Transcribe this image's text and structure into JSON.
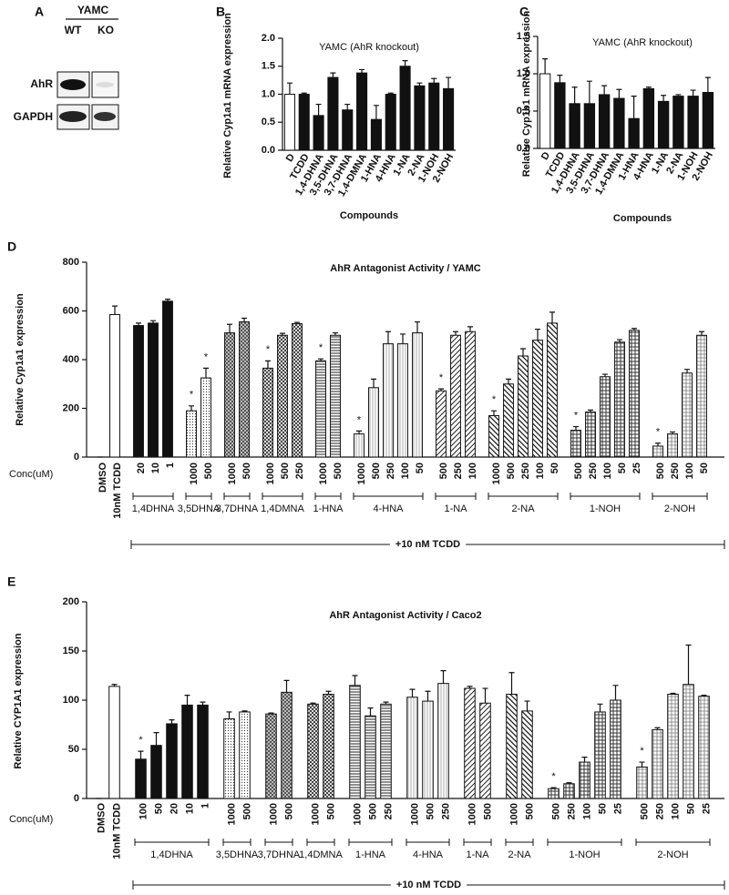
{
  "blot": {
    "panel_label": "A",
    "title": "YAMC",
    "columns": [
      "WT",
      "KO"
    ],
    "rows": [
      "AhR",
      "GAPDH"
    ]
  },
  "chart_data": [
    {
      "type": "bar",
      "panel_label": "B",
      "title": "YAMC (AhR knockout)",
      "y_label": "Relative Cyp1a1 mRNA expression",
      "x_label": "Compounds",
      "categories": [
        "D",
        "TCDD",
        "1,4-DHNA",
        "3,5-DHNA",
        "3,7-DHNA",
        "1,4-DMNA",
        "1-HNA",
        "4-HNA",
        "1-NA",
        "2-NA",
        "1-NOH",
        "2-NOH"
      ],
      "values": [
        1.0,
        1.0,
        0.62,
        1.3,
        0.72,
        1.38,
        0.55,
        1.0,
        1.5,
        1.15,
        1.2,
        1.1
      ],
      "errors": [
        0.2,
        0.02,
        0.2,
        0.08,
        0.1,
        0.06,
        0.25,
        0.02,
        0.1,
        0.05,
        0.08,
        0.2
      ],
      "colors": [
        "#ffffff",
        "#111111",
        "#111111",
        "#111111",
        "#111111",
        "#111111",
        "#111111",
        "#111111",
        "#111111",
        "#111111",
        "#111111",
        "#111111"
      ],
      "ylim": [
        0,
        2
      ],
      "yticks": [
        {
          "value": 0,
          "label": "0.0"
        },
        0.5,
        {
          "value": 1,
          "label": "1.0"
        },
        1.5,
        {
          "value": 2,
          "label": "2.0"
        }
      ]
    },
    {
      "type": "bar",
      "panel_label": "C",
      "title": "YAMC (AhR knockout)",
      "y_label": "Relative Cyp1b1 mRNA expression",
      "x_label": "Compounds",
      "categories": [
        "D",
        "TCDD",
        "1,4-DHNA",
        "3,5-DHNA",
        "3,7-DHNA",
        "1,4-DMNA",
        "1-HNA",
        "4-HNA",
        "1-NA",
        "2-NA",
        "1-NOH",
        "2-NOH"
      ],
      "values": [
        1.0,
        0.88,
        0.6,
        0.6,
        0.72,
        0.67,
        0.4,
        0.8,
        0.63,
        0.7,
        0.7,
        0.75
      ],
      "errors": [
        0.2,
        0.1,
        0.22,
        0.3,
        0.12,
        0.12,
        0.3,
        0.02,
        0.08,
        0.02,
        0.08,
        0.2
      ],
      "colors": [
        "#ffffff",
        "#111111",
        "#111111",
        "#111111",
        "#111111",
        "#111111",
        "#111111",
        "#111111",
        "#111111",
        "#111111",
        "#111111",
        "#111111"
      ],
      "ylim": [
        0,
        1.5
      ],
      "yticks": [
        {
          "value": 0,
          "label": "0.0"
        },
        0.5,
        {
          "value": 1,
          "label": "1.0"
        },
        1.5
      ]
    },
    {
      "type": "bar",
      "panel_label": "D",
      "title": "AhR Antagonist Activity / YAMC",
      "y_label": "Relative Cyp1a1 expression",
      "conc_label": "Conc(uM)",
      "treatment_label": "+10 nM TCDD",
      "categories": [
        "DMSO",
        "10nM TCDD",
        "20",
        "10",
        "1",
        "1000",
        "500",
        "1000",
        "500",
        "1000",
        "500",
        "250",
        "1000",
        "500",
        "1000",
        "500",
        "250",
        "100",
        "50",
        "500",
        "250",
        "100",
        "1000",
        "500",
        "250",
        "100",
        "50",
        "500",
        "250",
        "100",
        "50",
        "25",
        "500",
        "250",
        "100",
        "50"
      ],
      "values": [
        0,
        585,
        540,
        550,
        640,
        190,
        325,
        510,
        555,
        365,
        500,
        548,
        395,
        500,
        95,
        285,
        465,
        465,
        510,
        272,
        500,
        515,
        170,
        300,
        415,
        480,
        550,
        110,
        185,
        330,
        472,
        520,
        45,
        95,
        345,
        500
      ],
      "errors": [
        0,
        35,
        10,
        10,
        8,
        20,
        40,
        35,
        15,
        30,
        8,
        5,
        8,
        10,
        12,
        35,
        50,
        40,
        45,
        8,
        15,
        20,
        20,
        20,
        30,
        45,
        45,
        15,
        8,
        10,
        10,
        8,
        12,
        8,
        15,
        15
      ],
      "annotations": [
        null,
        null,
        null,
        null,
        null,
        "*",
        "*",
        null,
        null,
        "*",
        null,
        null,
        "*",
        null,
        "*",
        null,
        null,
        null,
        null,
        "*",
        null,
        null,
        "*",
        null,
        null,
        null,
        null,
        "*",
        null,
        null,
        null,
        null,
        "*",
        null,
        null,
        null
      ],
      "groups": [
        {
          "label": null,
          "count": 2,
          "fill": "white"
        },
        {
          "label": "1,4DHNA",
          "count": 3,
          "fill": "black"
        },
        {
          "label": "3,5DHNA",
          "count": 2,
          "fill": "dots"
        },
        {
          "label": "3,7DHNA",
          "count": 2,
          "fill": "checker"
        },
        {
          "label": "1,4DMNA",
          "count": 3,
          "fill": "checker-light"
        },
        {
          "label": "1-HNA",
          "count": 2,
          "fill": "hlines"
        },
        {
          "label": "4-HNA",
          "count": 5,
          "fill": "vlines"
        },
        {
          "label": "1-NA",
          "count": 3,
          "fill": "diag"
        },
        {
          "label": "2-NA",
          "count": 5,
          "fill": "diag-dense"
        },
        {
          "label": "1-NOH",
          "count": 5,
          "fill": "grid"
        },
        {
          "label": "2-NOH",
          "count": 4,
          "fill": "grid-light"
        }
      ],
      "ylim": [
        0,
        800
      ],
      "yticks": [
        0,
        200,
        400,
        600,
        800
      ]
    },
    {
      "type": "bar",
      "panel_label": "E",
      "title": "AhR Antagonist Activity / Caco2",
      "y_label": "Relative CYP1A1 expression",
      "conc_label": "Conc(uM)",
      "treatment_label": "+10 nM TCDD",
      "categories": [
        "DMSO",
        "10nM TCDD",
        "100",
        "50",
        "20",
        "10",
        "1",
        "1000",
        "500",
        "1000",
        "500",
        "1000",
        "500",
        "1000",
        "500",
        "250",
        "1000",
        "500",
        "250",
        "1000",
        "500",
        "1000",
        "500",
        "500",
        "250",
        "100",
        "50",
        "25",
        "500",
        "250",
        "100",
        "50",
        "25"
      ],
      "values": [
        0,
        114,
        40,
        54,
        76,
        95,
        95,
        81,
        88,
        86,
        108,
        96,
        106,
        115,
        84,
        96,
        103,
        99,
        117,
        112,
        97,
        106,
        89,
        10,
        15,
        37,
        88,
        100,
        32,
        70,
        106,
        116,
        104
      ],
      "errors": [
        0,
        2,
        8,
        13,
        4,
        10,
        3,
        7,
        1,
        1,
        12,
        1,
        3,
        10,
        8,
        2,
        8,
        10,
        13,
        2,
        15,
        22,
        10,
        1,
        1,
        5,
        8,
        15,
        5,
        2,
        1,
        40,
        1
      ],
      "annotations": [
        null,
        null,
        "*",
        null,
        null,
        null,
        null,
        null,
        null,
        null,
        null,
        null,
        null,
        null,
        null,
        null,
        null,
        null,
        null,
        null,
        null,
        null,
        null,
        "*",
        null,
        null,
        null,
        null,
        "*",
        null,
        null,
        null,
        null
      ],
      "groups": [
        {
          "label": null,
          "count": 2,
          "fill": "white"
        },
        {
          "label": "1,4DHNA",
          "count": 5,
          "fill": "black"
        },
        {
          "label": "3,5DHNA",
          "count": 2,
          "fill": "dots"
        },
        {
          "label": "3,7DHNA",
          "count": 2,
          "fill": "checker"
        },
        {
          "label": "1,4DMNA",
          "count": 2,
          "fill": "checker-light"
        },
        {
          "label": "1-HNA",
          "count": 3,
          "fill": "hlines"
        },
        {
          "label": "4-HNA",
          "count": 3,
          "fill": "vlines"
        },
        {
          "label": "1-NA",
          "count": 2,
          "fill": "diag"
        },
        {
          "label": "2-NA",
          "count": 2,
          "fill": "diag-dense"
        },
        {
          "label": "1-NOH",
          "count": 5,
          "fill": "grid"
        },
        {
          "label": "2-NOH",
          "count": 5,
          "fill": "grid-light"
        }
      ],
      "ylim": [
        0,
        200
      ],
      "yticks": [
        0,
        50,
        100,
        150,
        200
      ]
    }
  ]
}
